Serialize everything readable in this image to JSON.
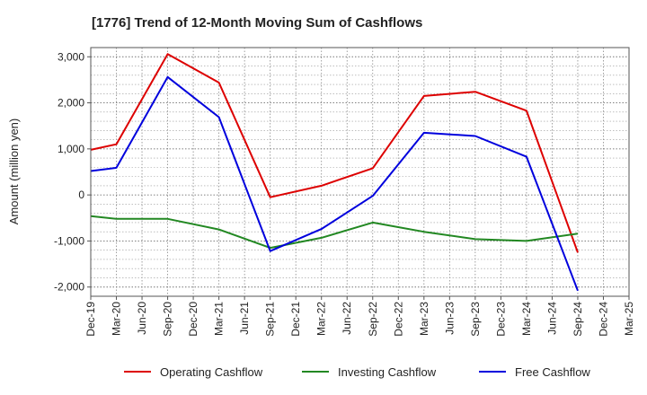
{
  "chart_data": {
    "type": "line",
    "title": "[1776]  Trend of 12-Month Moving Sum of Cashflows",
    "xlabel": "",
    "ylabel": "Amount (million yen)",
    "ylim": [
      -2200,
      3200
    ],
    "yticks": [
      3000,
      2000,
      1000,
      0,
      -1000,
      -2000
    ],
    "ytick_labels": [
      "3,000",
      "2,000",
      "1,000",
      "0",
      "-1,000",
      "-2,000"
    ],
    "categories": [
      "Dec-19",
      "Mar-20",
      "Jun-20",
      "Sep-20",
      "Dec-20",
      "Mar-21",
      "Jun-21",
      "Sep-21",
      "Dec-21",
      "Mar-22",
      "Jun-22",
      "Sep-22",
      "Dec-22",
      "Mar-23",
      "Jun-23",
      "Sep-23",
      "Dec-23",
      "Mar-24",
      "Jun-24",
      "Sep-24",
      "Dec-24",
      "Mar-25"
    ],
    "grid": true,
    "legend_position": "bottom",
    "series": [
      {
        "name": "Operating Cashflow",
        "color": "#dd0000",
        "values": [
          980,
          1100,
          null,
          3060,
          null,
          2440,
          null,
          -50,
          null,
          200,
          null,
          580,
          null,
          2150,
          null,
          2240,
          null,
          1830,
          null,
          -1250,
          null,
          null
        ]
      },
      {
        "name": "Investing Cashflow",
        "color": "#228822",
        "values": [
          -460,
          -520,
          null,
          -520,
          null,
          -750,
          null,
          -1150,
          null,
          -930,
          null,
          -600,
          null,
          -800,
          null,
          -960,
          null,
          -1000,
          null,
          -840,
          null,
          null
        ]
      },
      {
        "name": "Free Cashflow",
        "color": "#0000dd",
        "values": [
          520,
          590,
          null,
          2560,
          null,
          1690,
          null,
          -1220,
          null,
          -740,
          null,
          -20,
          null,
          1350,
          null,
          1280,
          null,
          830,
          null,
          -2080,
          null,
          null
        ]
      }
    ]
  }
}
